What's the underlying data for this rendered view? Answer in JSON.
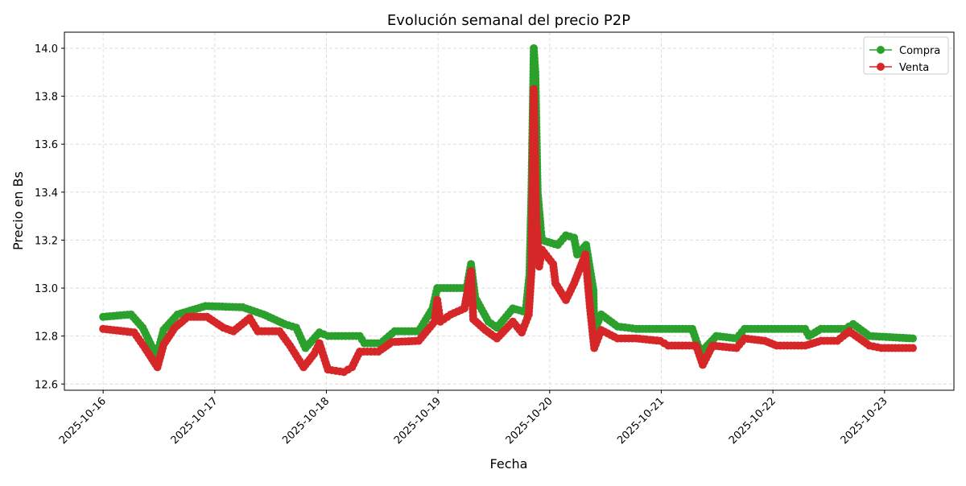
{
  "chart_data": {
    "type": "line",
    "title": "Evolución semanal del precio P2P",
    "xlabel": "Fecha",
    "ylabel": "Precio en Bs",
    "xlim": [
      "2025-10-15 15:40",
      "2025-10-23 14:55"
    ],
    "ylim": [
      12.574,
      14.067
    ],
    "x_ticks": [
      "2025-10-16",
      "2025-10-17",
      "2025-10-18",
      "2025-10-19",
      "2025-10-20",
      "2025-10-21",
      "2025-10-22",
      "2025-10-23"
    ],
    "y_ticks": [
      "12.6",
      "12.8",
      "13.0",
      "13.2",
      "13.4",
      "13.6",
      "13.8",
      "14.0"
    ],
    "grid": true,
    "legend": "top-right",
    "markers": true,
    "series": [
      {
        "name": "Compra",
        "color": "#2ca02c",
        "points": [
          [
            "2025-10-16 00:00",
            12.88
          ],
          [
            "2025-10-16 06:00",
            12.89
          ],
          [
            "2025-10-16 08:30",
            12.835
          ],
          [
            "2025-10-16 11:30",
            12.715
          ],
          [
            "2025-10-16 13:00",
            12.826
          ],
          [
            "2025-10-16 16:00",
            12.89
          ],
          [
            "2025-10-16 22:00",
            12.925
          ],
          [
            "2025-10-17 06:00",
            12.92
          ],
          [
            "2025-10-17 10:30",
            12.89
          ],
          [
            "2025-10-17 15:00",
            12.85
          ],
          [
            "2025-10-17 17:30",
            12.835
          ],
          [
            "2025-10-17 19:30",
            12.75
          ],
          [
            "2025-10-17 22:30",
            12.815
          ],
          [
            "2025-10-18 00:20",
            12.8
          ],
          [
            "2025-10-18 07:10",
            12.8
          ],
          [
            "2025-10-18 08:10",
            12.77
          ],
          [
            "2025-10-18 11:40",
            12.77
          ],
          [
            "2025-10-18 14:40",
            12.82
          ],
          [
            "2025-10-18 19:50",
            12.82
          ],
          [
            "2025-10-18 22:50",
            12.915
          ],
          [
            "2025-10-18 23:50",
            13.0
          ],
          [
            "2025-10-19 06:10",
            13.0
          ],
          [
            "2025-10-19 07:05",
            13.1
          ],
          [
            "2025-10-19 08:00",
            12.96
          ],
          [
            "2025-10-19 10:50",
            12.86
          ],
          [
            "2025-10-19 12:40",
            12.835
          ],
          [
            "2025-10-19 16:05",
            12.915
          ],
          [
            "2025-10-19 18:50",
            12.9
          ],
          [
            "2025-10-19 19:40",
            13.06
          ],
          [
            "2025-10-19 20:05",
            13.4
          ],
          [
            "2025-10-19 20:35",
            14.0
          ],
          [
            "2025-10-19 20:55",
            13.9
          ],
          [
            "2025-10-19 21:25",
            13.4
          ],
          [
            "2025-10-19 22:05",
            13.25
          ],
          [
            "2025-10-19 22:20",
            13.2
          ],
          [
            "2025-10-20 01:45",
            13.18
          ],
          [
            "2025-10-20 03:30",
            13.22
          ],
          [
            "2025-10-20 05:15",
            13.21
          ],
          [
            "2025-10-20 05:55",
            13.14
          ],
          [
            "2025-10-20 07:50",
            13.18
          ],
          [
            "2025-10-20 09:25",
            12.99
          ],
          [
            "2025-10-20 09:35",
            12.82
          ],
          [
            "2025-10-20 11:05",
            12.89
          ],
          [
            "2025-10-20 14:35",
            12.84
          ],
          [
            "2025-10-20 18:35",
            12.83
          ],
          [
            "2025-10-21 06:40",
            12.83
          ],
          [
            "2025-10-21 08:25",
            12.73
          ],
          [
            "2025-10-21 11:50",
            12.8
          ],
          [
            "2025-10-21 16:10",
            12.79
          ],
          [
            "2025-10-21 17:55",
            12.83
          ],
          [
            "2025-10-22 06:55",
            12.83
          ],
          [
            "2025-10-22 07:45",
            12.8
          ],
          [
            "2025-10-22 10:20",
            12.83
          ],
          [
            "2025-10-22 15:30",
            12.83
          ],
          [
            "2025-10-22 17:15",
            12.85
          ],
          [
            "2025-10-22 20:45",
            12.8
          ],
          [
            "2025-10-23 06:05",
            12.79
          ]
        ]
      },
      {
        "name": "Venta",
        "color": "#d62728",
        "points": [
          [
            "2025-10-16 00:00",
            12.83
          ],
          [
            "2025-10-16 06:40",
            12.815
          ],
          [
            "2025-10-16 09:00",
            12.75
          ],
          [
            "2025-10-16 11:40",
            12.67
          ],
          [
            "2025-10-16 13:00",
            12.765
          ],
          [
            "2025-10-16 15:25",
            12.835
          ],
          [
            "2025-10-16 18:10",
            12.88
          ],
          [
            "2025-10-16 22:20",
            12.88
          ],
          [
            "2025-10-17 01:50",
            12.835
          ],
          [
            "2025-10-17 04:00",
            12.82
          ],
          [
            "2025-10-17 07:30",
            12.875
          ],
          [
            "2025-10-17 09:15",
            12.82
          ],
          [
            "2025-10-17 13:55",
            12.82
          ],
          [
            "2025-10-17 16:10",
            12.76
          ],
          [
            "2025-10-17 19:05",
            12.67
          ],
          [
            "2025-10-17 21:20",
            12.725
          ],
          [
            "2025-10-17 22:30",
            12.77
          ],
          [
            "2025-10-18 00:20",
            12.66
          ],
          [
            "2025-10-18 03:45",
            12.65
          ],
          [
            "2025-10-18 05:30",
            12.67
          ],
          [
            "2025-10-18 07:10",
            12.735
          ],
          [
            "2025-10-18 11:10",
            12.735
          ],
          [
            "2025-10-18 14:05",
            12.775
          ],
          [
            "2025-10-18 19:50",
            12.78
          ],
          [
            "2025-10-18 23:15",
            12.86
          ],
          [
            "2025-10-18 23:50",
            12.95
          ],
          [
            "2025-10-19 00:30",
            12.86
          ],
          [
            "2025-10-19 02:45",
            12.89
          ],
          [
            "2025-10-19 05:40",
            12.915
          ],
          [
            "2025-10-19 07:05",
            13.07
          ],
          [
            "2025-10-19 07:35",
            12.87
          ],
          [
            "2025-10-19 10:10",
            12.825
          ],
          [
            "2025-10-19 12:40",
            12.79
          ],
          [
            "2025-10-19 16:05",
            12.86
          ],
          [
            "2025-10-19 18:00",
            12.815
          ],
          [
            "2025-10-19 19:30",
            12.89
          ],
          [
            "2025-10-19 20:05",
            13.07
          ],
          [
            "2025-10-19 20:35",
            13.83
          ],
          [
            "2025-10-19 21:05",
            13.3
          ],
          [
            "2025-10-19 21:45",
            13.09
          ],
          [
            "2025-10-19 22:20",
            13.16
          ],
          [
            "2025-10-20 00:45",
            13.1
          ],
          [
            "2025-10-20 01:15",
            13.02
          ],
          [
            "2025-10-20 03:30",
            12.95
          ],
          [
            "2025-10-20 05:15",
            13.02
          ],
          [
            "2025-10-20 07:40",
            13.14
          ],
          [
            "2025-10-20 08:40",
            12.92
          ],
          [
            "2025-10-20 09:35",
            12.75
          ],
          [
            "2025-10-20 11:05",
            12.825
          ],
          [
            "2025-10-20 14:35",
            12.79
          ],
          [
            "2025-10-20 18:35",
            12.79
          ],
          [
            "2025-10-20 23:45",
            12.78
          ],
          [
            "2025-10-21 01:30",
            12.76
          ],
          [
            "2025-10-21 07:30",
            12.76
          ],
          [
            "2025-10-21 08:55",
            12.68
          ],
          [
            "2025-10-21 11:00",
            12.76
          ],
          [
            "2025-10-21 16:10",
            12.75
          ],
          [
            "2025-10-21 17:55",
            12.79
          ],
          [
            "2025-10-21 22:15",
            12.78
          ],
          [
            "2025-10-22 00:50",
            12.76
          ],
          [
            "2025-10-22 06:55",
            12.76
          ],
          [
            "2025-10-22 10:20",
            12.78
          ],
          [
            "2025-10-22 13:50",
            12.78
          ],
          [
            "2025-10-22 16:25",
            12.82
          ],
          [
            "2025-10-22 20:45",
            12.76
          ],
          [
            "2025-10-22 23:20",
            12.75
          ],
          [
            "2025-10-23 06:05",
            12.75
          ]
        ]
      }
    ]
  }
}
